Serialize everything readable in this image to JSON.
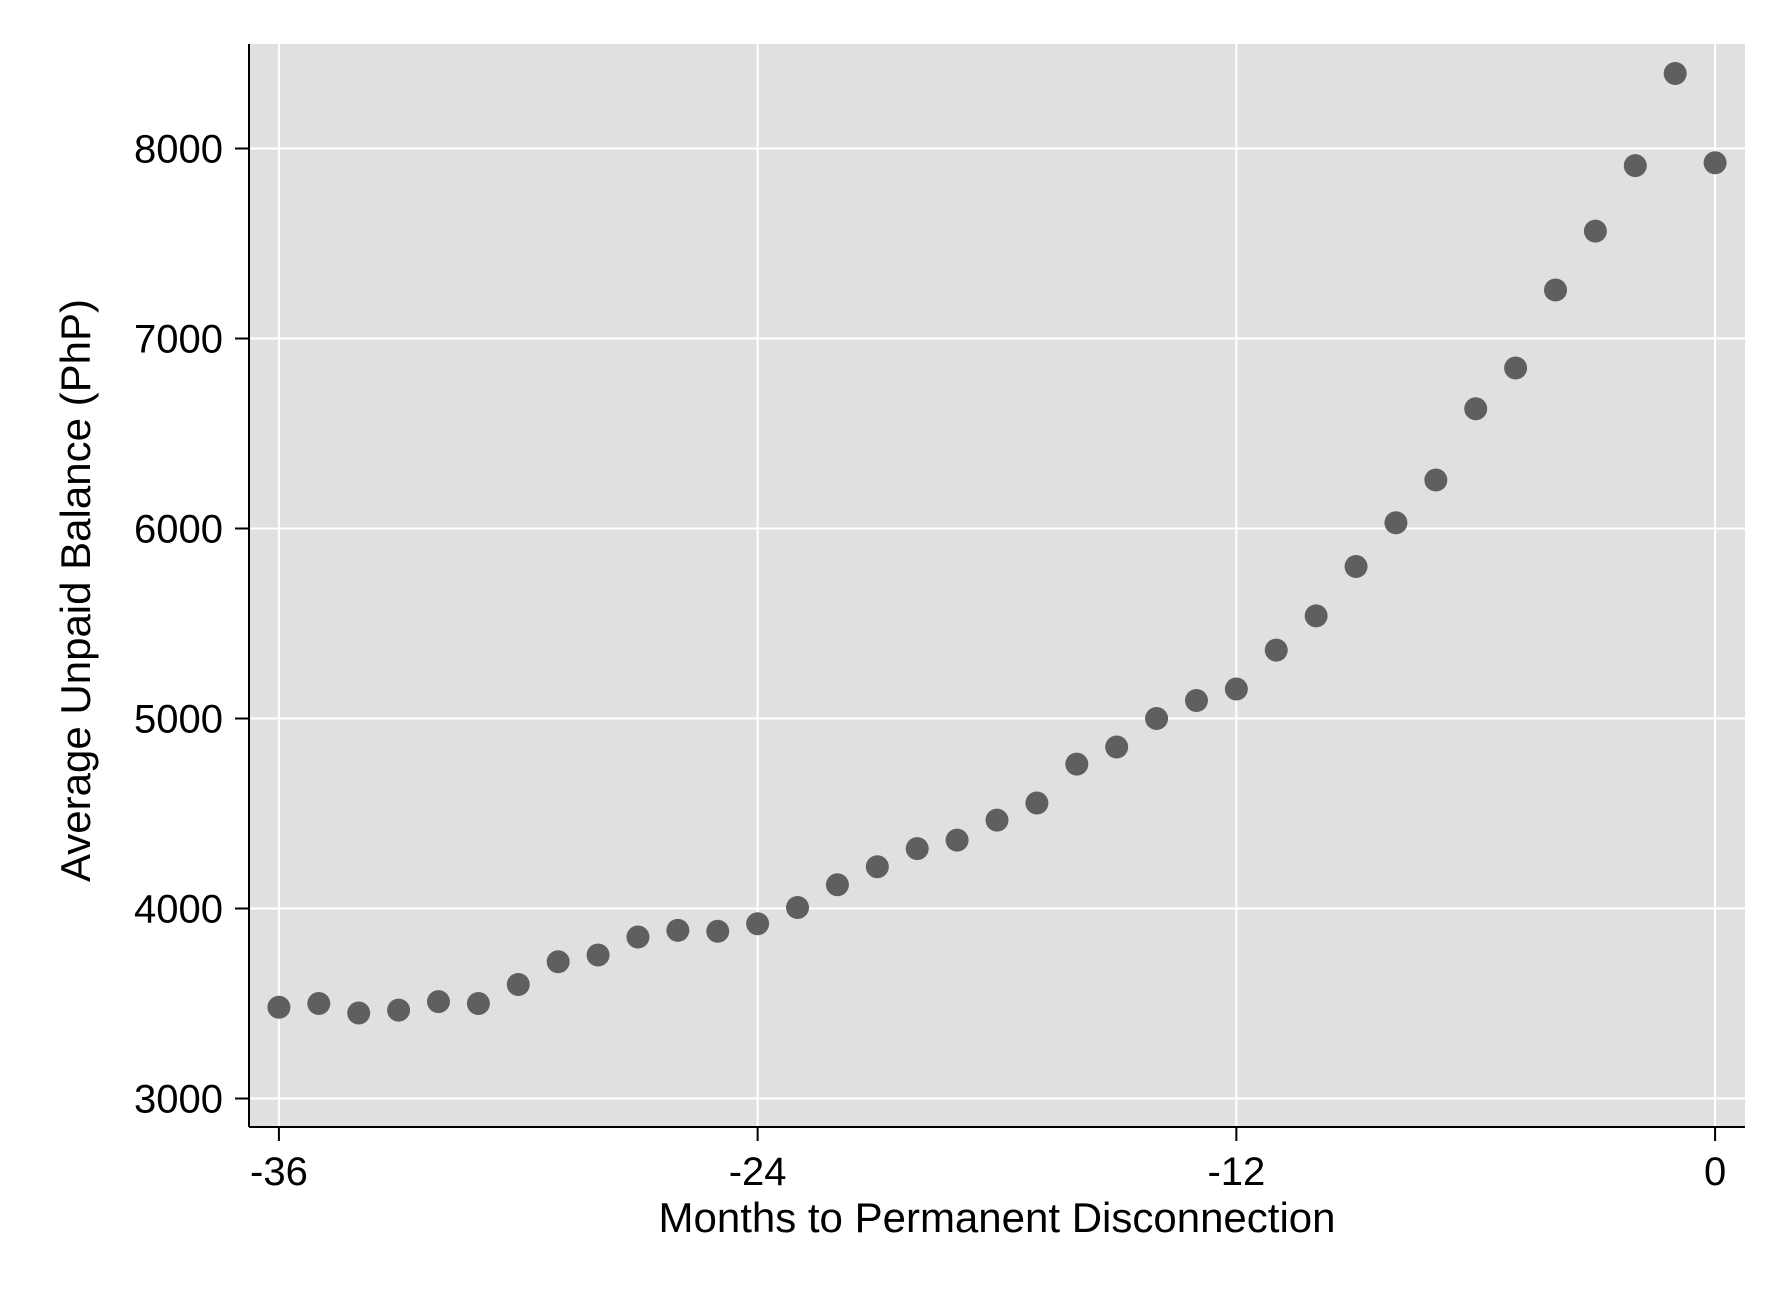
{
  "chart_data": {
    "type": "scatter",
    "title": "",
    "xlabel": "Months to Permanent Disconnection",
    "ylabel": "Average Unpaid Balance (PhP)",
    "xlim": [
      -36.75,
      0.75
    ],
    "ylim": [
      2850,
      8550
    ],
    "xticks": [
      -36,
      -24,
      -12,
      0
    ],
    "xtick_labels": [
      "-36",
      "-24",
      "-12",
      "0"
    ],
    "yticks": [
      3000,
      4000,
      5000,
      6000,
      7000,
      8000
    ],
    "ytick_labels": [
      "3000",
      "4000",
      "5000",
      "6000",
      "7000",
      "8000"
    ],
    "grid": true,
    "legend": "none",
    "colors": {
      "plot_background": "#e0e0e0",
      "grid": "#ffffff",
      "marker": "#5f5f5f"
    },
    "series": [
      {
        "x": [
          -36,
          -35,
          -34,
          -33,
          -32,
          -31,
          -30,
          -29,
          -28,
          -27,
          -26,
          -25,
          -24,
          -23,
          -22,
          -21,
          -20,
          -19,
          -18,
          -17,
          -16,
          -15,
          -14,
          -13,
          -12,
          -11,
          -10,
          -9,
          -8,
          -7,
          -6,
          -5,
          -4,
          -3,
          -2,
          -1,
          0
        ],
        "y": [
          3480,
          3500,
          3450,
          3465,
          3510,
          3500,
          3600,
          3720,
          3755,
          3850,
          3885,
          3880,
          3920,
          4005,
          4125,
          4220,
          4315,
          4360,
          4465,
          4555,
          4760,
          4850,
          5000,
          5095,
          5155,
          5360,
          5540,
          5800,
          6030,
          6255,
          6630,
          6845,
          7255,
          7565,
          7910,
          8395,
          7925
        ]
      }
    ]
  }
}
